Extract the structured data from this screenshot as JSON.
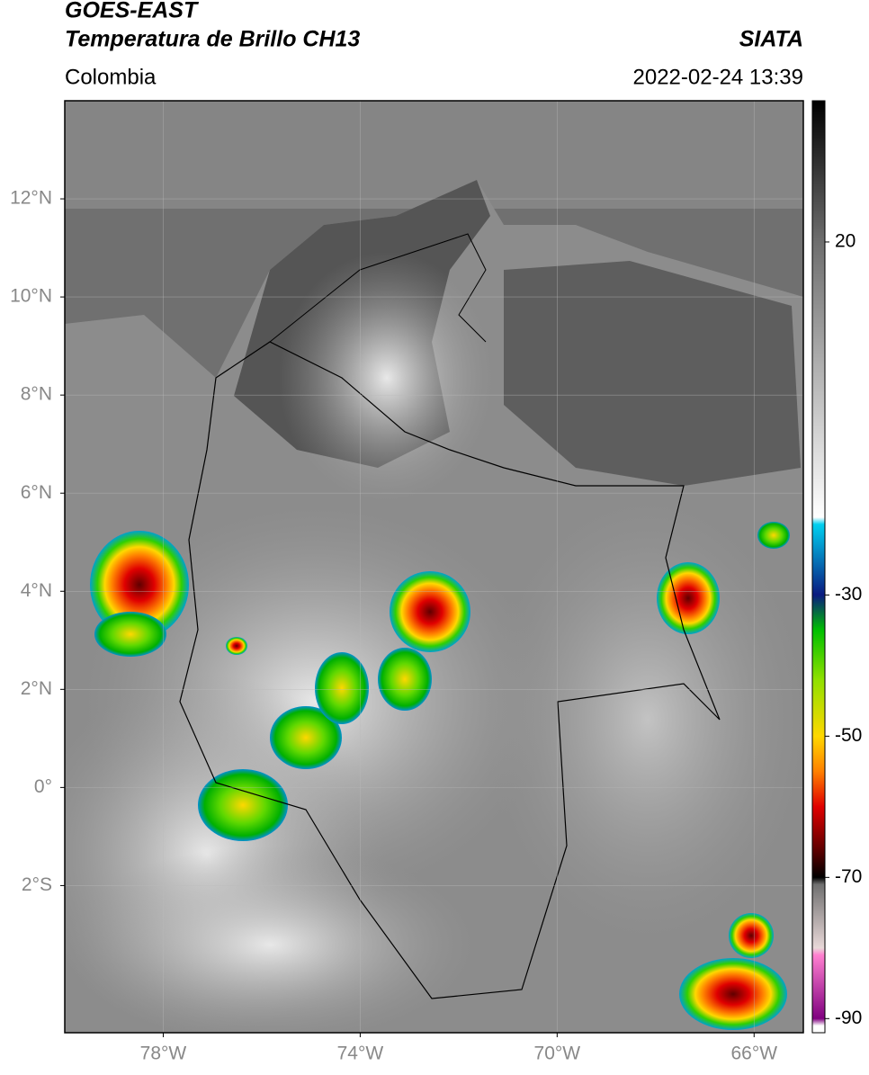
{
  "header": {
    "title_line1": "GOES-EAST",
    "title_line2": "Temperatura de Brillo CH13",
    "subtitle": "Colombia",
    "source": "SIATA",
    "timestamp": "2022-02-24 13:39"
  },
  "map": {
    "xlim": [
      -80,
      -65
    ],
    "ylim": [
      -5,
      14
    ],
    "xticks": [
      {
        "value": -78,
        "label": "78°W"
      },
      {
        "value": -74,
        "label": "74°W"
      },
      {
        "value": -70,
        "label": "70°W"
      },
      {
        "value": -66,
        "label": "66°W"
      }
    ],
    "yticks": [
      {
        "value": 12,
        "label": "12°N"
      },
      {
        "value": 10,
        "label": "10°N"
      },
      {
        "value": 8,
        "label": "8°N"
      },
      {
        "value": 6,
        "label": "6°N"
      },
      {
        "value": 4,
        "label": "4°N"
      },
      {
        "value": 2,
        "label": "2°N"
      },
      {
        "value": 0,
        "label": "0°"
      },
      {
        "value": -2,
        "label": "2°S"
      }
    ],
    "grid": true
  },
  "colorbar": {
    "lim": [
      -92,
      40
    ],
    "ticks": [
      20,
      -30,
      -50,
      -70,
      -90
    ],
    "stops": [
      {
        "value": 40,
        "color": "#000000"
      },
      {
        "value": 20,
        "color": "#6e6e6e"
      },
      {
        "value": -19,
        "color": "#ffffff"
      },
      {
        "value": -20,
        "color": "#00d0f0"
      },
      {
        "value": -30,
        "color": "#0a1a80"
      },
      {
        "value": -35,
        "color": "#00c000"
      },
      {
        "value": -42,
        "color": "#90e000"
      },
      {
        "value": -50,
        "color": "#ffd800"
      },
      {
        "value": -55,
        "color": "#ff8000"
      },
      {
        "value": -60,
        "color": "#e00000"
      },
      {
        "value": -66,
        "color": "#600000"
      },
      {
        "value": -70,
        "color": "#000000"
      },
      {
        "value": -71,
        "color": "#707070"
      },
      {
        "value": -80,
        "color": "#e8d8d8"
      },
      {
        "value": -81,
        "color": "#ff80d0"
      },
      {
        "value": -90,
        "color": "#800080"
      },
      {
        "value": -91,
        "color": "#ffffff"
      }
    ]
  }
}
